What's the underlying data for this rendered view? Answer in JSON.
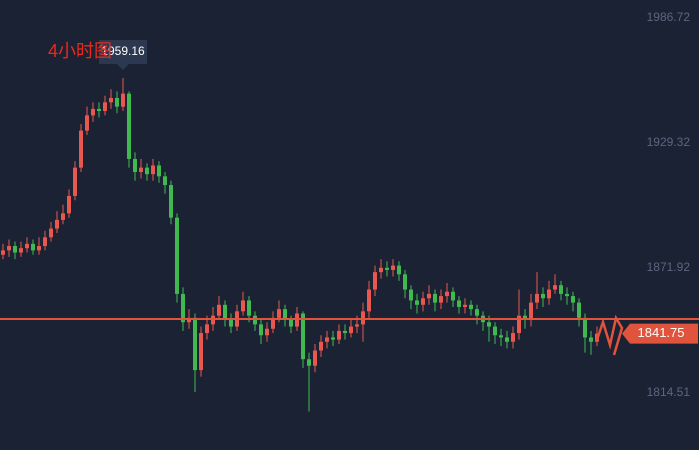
{
  "chart_data": {
    "type": "candlestick",
    "annotation": "4小时图",
    "ylim": [
      1788.3,
      1995.0
    ],
    "yticks": [
      1986.72,
      1929.32,
      1871.92,
      1814.51
    ],
    "up_color": "#e8584f",
    "down_color": "#3fb950",
    "hline": 1848.5,
    "hline_color": "#e0533d",
    "open": [
      1878,
      1880,
      1882,
      1879,
      1881,
      1883,
      1880,
      1882,
      1886,
      1890,
      1894,
      1897,
      1905,
      1918,
      1935,
      1942,
      1945,
      1944,
      1948,
      1950,
      1946,
      1952,
      1922,
      1916,
      1918,
      1915,
      1919,
      1914,
      1910,
      1895,
      1860,
      1847,
      1849,
      1825,
      1842,
      1846,
      1850,
      1855,
      1848,
      1845,
      1852,
      1857,
      1850,
      1846,
      1841,
      1844,
      1849,
      1853,
      1848,
      1845,
      1851,
      1830,
      1827,
      1834,
      1838,
      1840,
      1839,
      1843,
      1842,
      1845,
      1846,
      1852,
      1862,
      1870,
      1872,
      1871,
      1873,
      1869,
      1862,
      1857,
      1855,
      1858,
      1860,
      1856,
      1859,
      1861,
      1857,
      1854,
      1855,
      1853,
      1850,
      1847,
      1845,
      1841,
      1840,
      1838,
      1842,
      1850,
      1848,
      1856,
      1860,
      1858,
      1862,
      1864,
      1860,
      1859,
      1856,
      1849,
      1840,
      1838
    ],
    "high": [
      1883,
      1885,
      1884,
      1884,
      1886,
      1885,
      1886,
      1889,
      1893,
      1898,
      1901,
      1908,
      1921,
      1938,
      1946,
      1948,
      1948,
      1951,
      1954,
      1953,
      1959.16,
      1953,
      1925,
      1922,
      1920,
      1922,
      1921,
      1916,
      1912,
      1897,
      1863,
      1853,
      1851,
      1845,
      1850,
      1854,
      1859,
      1857,
      1851,
      1855,
      1861,
      1859,
      1852,
      1848,
      1847,
      1852,
      1857,
      1855,
      1850,
      1854,
      1852,
      1833,
      1837,
      1841,
      1843,
      1843,
      1846,
      1846,
      1848,
      1850,
      1856,
      1866,
      1873,
      1876,
      1875,
      1876,
      1875,
      1871,
      1864,
      1860,
      1861,
      1864,
      1862,
      1862,
      1865,
      1863,
      1859,
      1858,
      1857,
      1855,
      1852,
      1850,
      1847,
      1844,
      1843,
      1845,
      1862,
      1853,
      1860,
      1870,
      1863,
      1866,
      1869,
      1866,
      1863,
      1861,
      1858,
      1851,
      1843,
      1845
    ],
    "low": [
      1876,
      1877,
      1876,
      1877,
      1879,
      1878,
      1878,
      1880,
      1884,
      1888,
      1892,
      1895,
      1903,
      1916,
      1933,
      1939,
      1941,
      1942,
      1945,
      1943,
      1944,
      1918,
      1912,
      1913,
      1912,
      1912,
      1911,
      1906,
      1892,
      1856,
      1843,
      1844,
      1815,
      1822,
      1839,
      1843,
      1848,
      1845,
      1842,
      1843,
      1850,
      1847,
      1843,
      1837,
      1838,
      1842,
      1847,
      1845,
      1842,
      1843,
      1826,
      1806,
      1824,
      1831,
      1835,
      1836,
      1837,
      1839,
      1840,
      1842,
      1838,
      1849,
      1859,
      1867,
      1868,
      1868,
      1866,
      1858,
      1853,
      1851,
      1852,
      1855,
      1852,
      1853,
      1856,
      1854,
      1851,
      1851,
      1850,
      1846,
      1843,
      1838,
      1837,
      1836,
      1835,
      1835,
      1839,
      1844,
      1845,
      1853,
      1854,
      1855,
      1860,
      1857,
      1855,
      1852,
      1845,
      1833,
      1832,
      1836
    ],
    "close": [
      1880,
      1882,
      1879,
      1881,
      1883,
      1880,
      1882,
      1886,
      1890,
      1894,
      1897,
      1905,
      1918,
      1935,
      1942,
      1945,
      1944,
      1948,
      1950,
      1946,
      1952,
      1922,
      1916,
      1918,
      1915,
      1919,
      1914,
      1910,
      1895,
      1860,
      1847,
      1849,
      1825,
      1842,
      1846,
      1850,
      1855,
      1848,
      1845,
      1852,
      1857,
      1850,
      1846,
      1841,
      1844,
      1849,
      1853,
      1848,
      1845,
      1851,
      1830,
      1827,
      1834,
      1838,
      1840,
      1839,
      1843,
      1842,
      1845,
      1846,
      1852,
      1862,
      1870,
      1872,
      1871,
      1873,
      1869,
      1862,
      1857,
      1855,
      1858,
      1860,
      1856,
      1859,
      1861,
      1857,
      1854,
      1855,
      1853,
      1850,
      1847,
      1845,
      1841,
      1840,
      1838,
      1842,
      1850,
      1848,
      1856,
      1860,
      1858,
      1862,
      1864,
      1860,
      1859,
      1856,
      1849,
      1840,
      1838,
      1841.75
    ]
  }
}
